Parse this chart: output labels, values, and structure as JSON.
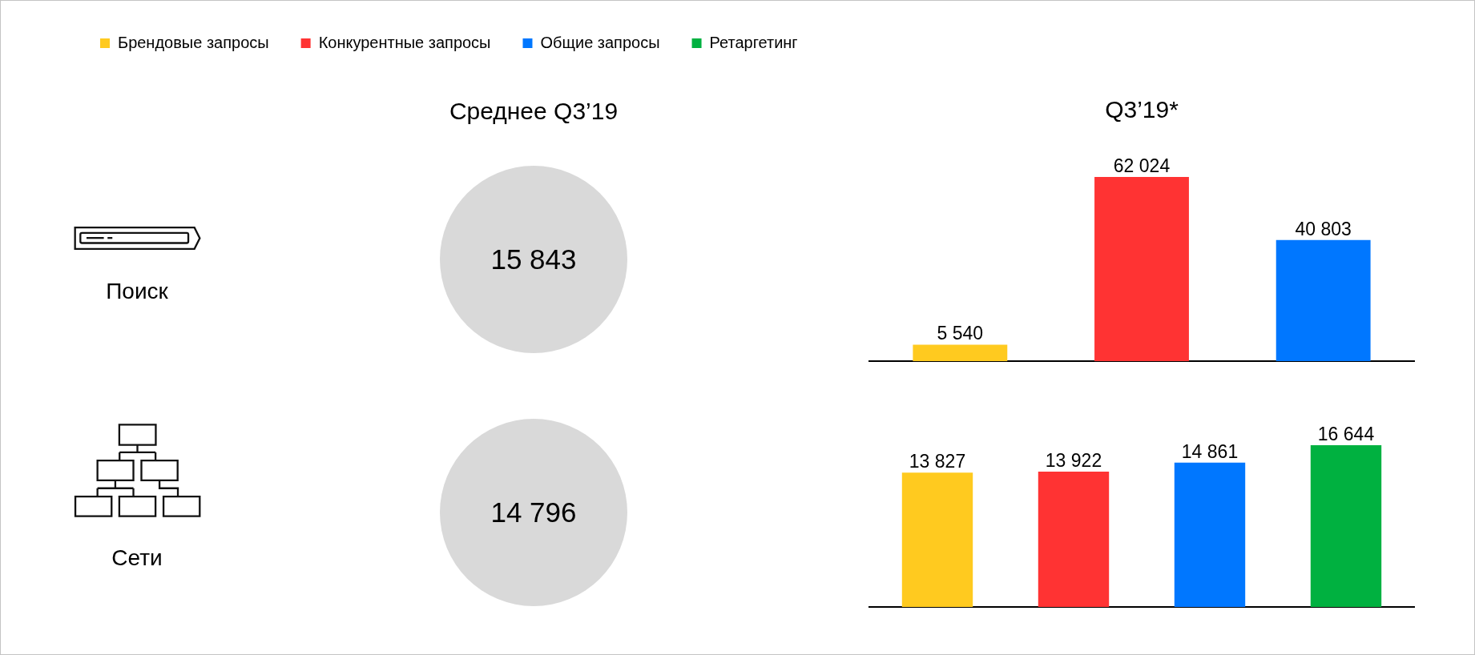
{
  "chart_data": [
    {
      "type": "other",
      "title": "Среднее Q3’19",
      "categories": [
        "Поиск",
        "Сети"
      ],
      "values": [
        15843,
        14796
      ],
      "data_labels": true
    },
    {
      "type": "bar",
      "title": "Q3’19*",
      "categories": [
        null
      ],
      "series": [
        {
          "name": "Брендовые запросы",
          "color": "#ffca1f",
          "values": [
            5540
          ],
          "value_labels": [
            "5 540"
          ]
        },
        {
          "name": "Конкурентные запросы",
          "color": "#ff3333",
          "values": [
            62024
          ],
          "value_labels": [
            "62 024"
          ]
        },
        {
          "name": "Общие запросы",
          "color": "#0077ff",
          "values": [
            40803
          ],
          "value_labels": [
            "40 803"
          ]
        },
        {
          "name": "Ретаргетинг",
          "color": "#00b140",
          "values": [
            null
          ]
        }
      ],
      "tick_labels": false,
      "legend": "top left"
    },
    {
      "type": "bar",
      "categories": [
        null
      ],
      "series": [
        {
          "color": "#ffca1f",
          "values": [
            13827
          ],
          "value_labels": [
            "13 827"
          ]
        },
        {
          "color": "#ff3333",
          "values": [
            13922
          ],
          "value_labels": [
            "13 922"
          ]
        },
        {
          "color": "#0077ff",
          "values": [
            14861
          ],
          "value_labels": [
            "14 861"
          ]
        },
        {
          "color": "#00b140",
          "values": [
            16644
          ],
          "value_labels": [
            "16 644"
          ]
        }
      ],
      "tick_labels": false
    }
  ]
}
